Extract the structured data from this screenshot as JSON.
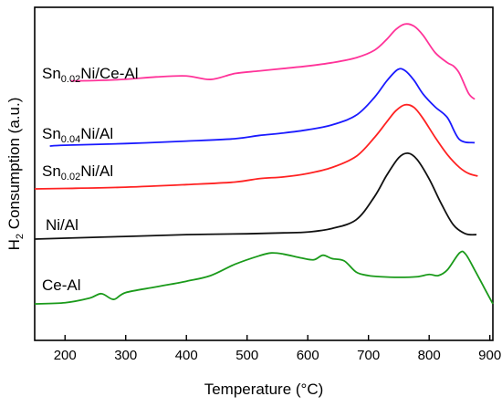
{
  "chart_data": {
    "type": "line",
    "xlabel": "Temperature (°C)",
    "ylabel": {
      "main": "H",
      "sub": "2",
      "rest": " Consumption (a.u.)"
    },
    "xlim": [
      150,
      905
    ],
    "x_ticks": [
      200,
      300,
      400,
      500,
      600,
      700,
      800,
      900
    ],
    "y_ticks_shown": false,
    "legend": "curve labels placed beside each trace, left side",
    "series": [
      {
        "name": "Sn0.02Ni/Ce-Al",
        "label_parts": {
          "main": "Sn",
          "sub": "0.02",
          "rest": "Ni/Ce-Al"
        },
        "color": "#ff3399",
        "points": [
          [
            210,
            0.3
          ],
          [
            250,
            0.305
          ],
          [
            300,
            0.32
          ],
          [
            350,
            0.348
          ],
          [
            400,
            0.36
          ],
          [
            440,
            0.318
          ],
          [
            480,
            0.39
          ],
          [
            520,
            0.42
          ],
          [
            560,
            0.45
          ],
          [
            600,
            0.48
          ],
          [
            640,
            0.52
          ],
          [
            680,
            0.58
          ],
          [
            710,
            0.67
          ],
          [
            730,
            0.8
          ],
          [
            745,
            0.92
          ],
          [
            760,
            0.985
          ],
          [
            775,
            0.96
          ],
          [
            790,
            0.85
          ],
          [
            810,
            0.64
          ],
          [
            830,
            0.52
          ],
          [
            840,
            0.48
          ],
          [
            850,
            0.39
          ],
          [
            865,
            0.15
          ],
          [
            875,
            0.08
          ]
        ]
      },
      {
        "name": "Sn0.04Ni/Al",
        "label_parts": {
          "main": "Sn",
          "sub": "0.04",
          "rest": "Ni/Al"
        },
        "color": "#1a1aff",
        "points": [
          [
            175,
            0.0
          ],
          [
            200,
            0.01
          ],
          [
            300,
            0.03
          ],
          [
            400,
            0.06
          ],
          [
            480,
            0.09
          ],
          [
            520,
            0.13
          ],
          [
            560,
            0.16
          ],
          [
            600,
            0.2
          ],
          [
            640,
            0.26
          ],
          [
            680,
            0.38
          ],
          [
            710,
            0.6
          ],
          [
            730,
            0.8
          ],
          [
            748,
            0.94
          ],
          [
            760,
            0.93
          ],
          [
            775,
            0.81
          ],
          [
            790,
            0.64
          ],
          [
            810,
            0.48
          ],
          [
            830,
            0.35
          ],
          [
            850,
            0.08
          ],
          [
            875,
            0.04
          ]
        ]
      },
      {
        "name": "Sn0.02Ni/Al",
        "label_parts": {
          "main": "Sn",
          "sub": "0.02",
          "rest": "Ni/Al"
        },
        "color": "#ff2222",
        "points": [
          [
            150,
            0.0
          ],
          [
            200,
            0.005
          ],
          [
            300,
            0.02
          ],
          [
            400,
            0.05
          ],
          [
            480,
            0.08
          ],
          [
            520,
            0.12
          ],
          [
            560,
            0.14
          ],
          [
            600,
            0.18
          ],
          [
            640,
            0.25
          ],
          [
            680,
            0.38
          ],
          [
            710,
            0.6
          ],
          [
            730,
            0.78
          ],
          [
            745,
            0.91
          ],
          [
            760,
            0.98
          ],
          [
            775,
            0.95
          ],
          [
            790,
            0.82
          ],
          [
            810,
            0.6
          ],
          [
            830,
            0.4
          ],
          [
            850,
            0.25
          ],
          [
            865,
            0.18
          ],
          [
            880,
            0.15
          ]
        ]
      },
      {
        "name": "Ni/Al",
        "label_parts": {
          "main": "Ni/Al",
          "sub": "",
          "rest": ""
        },
        "color": "#111111",
        "points": [
          [
            150,
            0.0
          ],
          [
            200,
            0.01
          ],
          [
            300,
            0.03
          ],
          [
            400,
            0.05
          ],
          [
            500,
            0.06
          ],
          [
            560,
            0.07
          ],
          [
            600,
            0.08
          ],
          [
            640,
            0.12
          ],
          [
            680,
            0.22
          ],
          [
            710,
            0.48
          ],
          [
            730,
            0.72
          ],
          [
            750,
            0.92
          ],
          [
            765,
            0.97
          ],
          [
            780,
            0.9
          ],
          [
            800,
            0.68
          ],
          [
            820,
            0.4
          ],
          [
            840,
            0.16
          ],
          [
            860,
            0.06
          ],
          [
            878,
            0.05
          ]
        ]
      },
      {
        "name": "Ce-Al",
        "label_parts": {
          "main": "Ce-Al",
          "sub": "",
          "rest": ""
        },
        "color": "#1a9a1a",
        "points": [
          [
            150,
            0.0
          ],
          [
            200,
            0.02
          ],
          [
            240,
            0.1
          ],
          [
            260,
            0.18
          ],
          [
            280,
            0.08
          ],
          [
            300,
            0.2
          ],
          [
            350,
            0.3
          ],
          [
            400,
            0.4
          ],
          [
            440,
            0.5
          ],
          [
            480,
            0.7
          ],
          [
            520,
            0.85
          ],
          [
            540,
            0.9
          ],
          [
            560,
            0.88
          ],
          [
            590,
            0.81
          ],
          [
            610,
            0.78
          ],
          [
            625,
            0.86
          ],
          [
            640,
            0.8
          ],
          [
            660,
            0.76
          ],
          [
            680,
            0.56
          ],
          [
            700,
            0.5
          ],
          [
            720,
            0.48
          ],
          [
            750,
            0.47
          ],
          [
            780,
            0.48
          ],
          [
            800,
            0.52
          ],
          [
            815,
            0.5
          ],
          [
            830,
            0.6
          ],
          [
            850,
            0.9
          ],
          [
            860,
            0.88
          ],
          [
            875,
            0.6
          ],
          [
            890,
            0.3
          ],
          [
            905,
            0.0
          ]
        ]
      }
    ]
  }
}
